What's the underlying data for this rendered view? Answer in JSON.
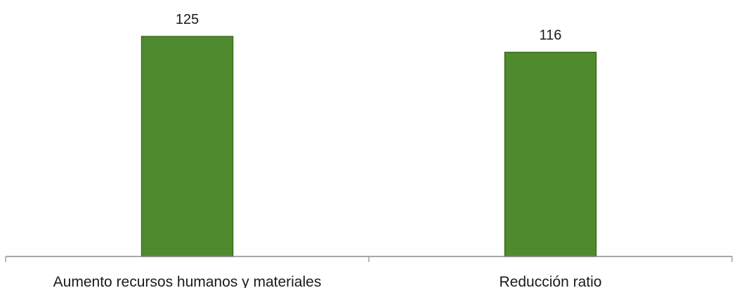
{
  "chart_data": {
    "type": "bar",
    "categories": [
      "Aumento recursos humanos y materiales",
      "Reducción ratio"
    ],
    "values": [
      125,
      116
    ],
    "title": "",
    "xlabel": "",
    "ylabel": "",
    "ylim": [
      0,
      125
    ],
    "grid": false,
    "legend": "none",
    "data_labels": true,
    "colors": {
      "bar_fill": "#4f8a2e",
      "bar_stroke": "#3b6d20",
      "axis": "#8c8c8c"
    }
  }
}
